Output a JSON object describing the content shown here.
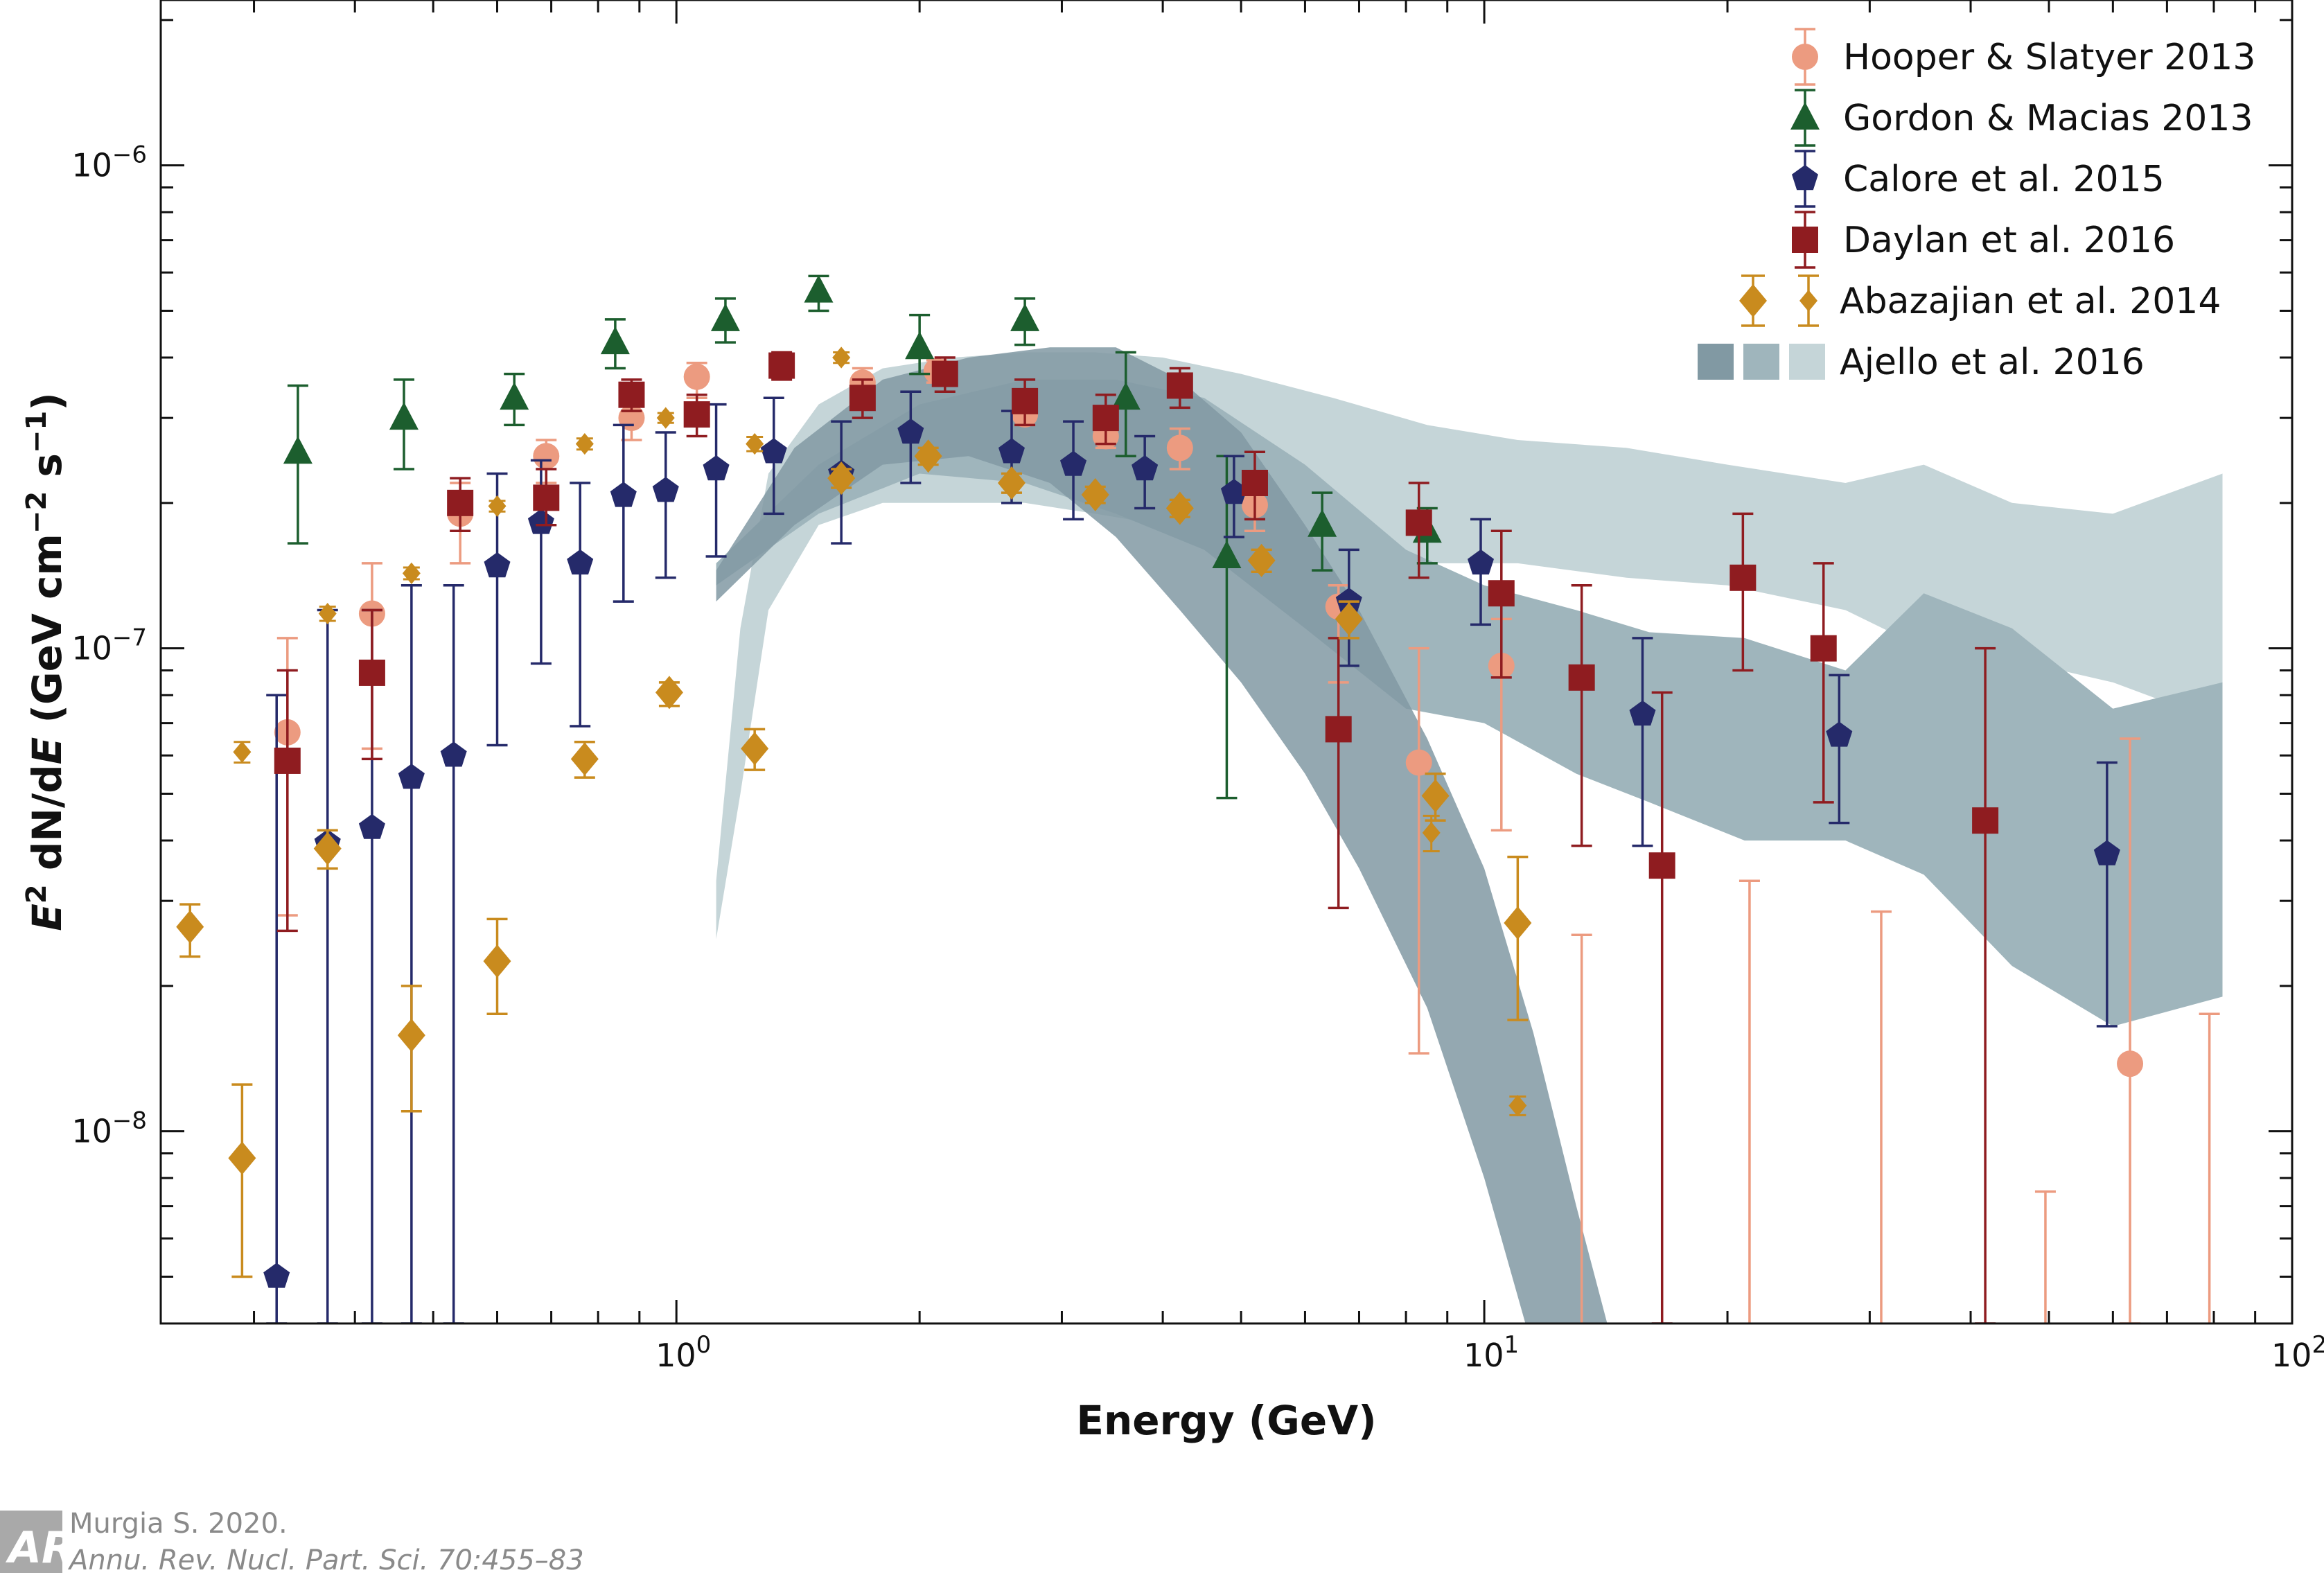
{
  "chart_data": {
    "type": "scatter",
    "title": "",
    "xlabel": "Energy (GeV)",
    "ylabel_parts": [
      "E",
      "2",
      " dN/d",
      "E",
      " (GeV cm",
      "−2",
      " s",
      "−1",
      ")"
    ],
    "xscale": "log",
    "yscale": "log",
    "xlim": [
      0.23,
      100
    ],
    "ylim": [
      4e-09,
      2.2e-06
    ],
    "x_ticks": [
      {
        "value": 1,
        "base": "10",
        "exp": "0"
      },
      {
        "value": 10,
        "base": "10",
        "exp": "1"
      },
      {
        "value": 100,
        "base": "10",
        "exp": "2"
      }
    ],
    "y_ticks": [
      {
        "value": 1e-08,
        "base": "10",
        "exp": "−8"
      },
      {
        "value": 1e-07,
        "base": "10",
        "exp": "−7"
      },
      {
        "value": 1e-06,
        "base": "10",
        "exp": "−6"
      }
    ],
    "legend_position": "top-right",
    "bands": [
      {
        "name": "Ajello et al. 2016",
        "color": "#c5d5d8",
        "x": [
          1.12,
          1.2,
          1.3,
          1.5,
          1.8,
          2.2,
          2.7,
          3.3,
          4.0,
          5.0,
          6.5,
          8.5,
          11,
          15,
          20,
          28,
          35,
          45,
          60,
          82
        ],
        "upper": [
          3.3e-08,
          1.1e-07,
          2.3e-07,
          3.2e-07,
          3.8e-07,
          4e-07,
          4.1e-07,
          4.1e-07,
          4e-07,
          3.7e-07,
          3.3e-07,
          2.9e-07,
          2.7e-07,
          2.6e-07,
          2.4e-07,
          2.2e-07,
          2.4e-07,
          2e-07,
          1.9e-07,
          2.3e-07
        ],
        "lower": [
          2.5e-08,
          5e-08,
          1.2e-07,
          1.8e-07,
          2e-07,
          2e-07,
          2e-07,
          1.9e-07,
          1.8e-07,
          1.6e-07,
          1.5e-07,
          1.5e-07,
          1.5e-07,
          1.4e-07,
          1.35e-07,
          1.2e-07,
          1e-07,
          9.5e-08,
          8.5e-08,
          7e-08
        ]
      },
      {
        "name": "Ajello et al. 2016",
        "color": "#9fb5bc",
        "x": [
          1.12,
          1.5,
          2.0,
          2.7,
          3.5,
          4.5,
          6.0,
          8.0,
          10,
          13,
          16,
          21,
          28,
          35,
          45,
          60,
          82
        ],
        "upper": [
          1.5e-07,
          2.4e-07,
          3.2e-07,
          3.6e-07,
          3.6e-07,
          3.3e-07,
          2.4e-07,
          1.6e-07,
          1.35e-07,
          1.2e-07,
          1.08e-07,
          1.05e-07,
          9e-08,
          1.3e-07,
          1.1e-07,
          7.5e-08,
          8.5e-08
        ],
        "lower": [
          1.35e-07,
          1.9e-07,
          2.3e-07,
          2.2e-07,
          1.9e-07,
          1.6e-07,
          1.1e-07,
          7.5e-08,
          7e-08,
          5.5e-08,
          4.8e-08,
          4e-08,
          4e-08,
          3.4e-08,
          2.2e-08,
          1.65e-08,
          1.9e-08
        ]
      },
      {
        "name": "Ajello et al. 2016",
        "color": "#8199a3",
        "x": [
          1.12,
          1.4,
          1.8,
          2.3,
          2.9,
          3.5,
          4.2,
          5.0,
          6.0,
          7.0,
          8.5,
          10,
          11.5,
          13,
          14.5
        ],
        "upper": [
          1.45e-07,
          2.6e-07,
          3.6e-07,
          4e-07,
          4.2e-07,
          4.2e-07,
          3.6e-07,
          2.8e-07,
          1.8e-07,
          1.2e-07,
          6.5e-08,
          3.5e-08,
          1.6e-08,
          7e-09,
          3.5e-09
        ],
        "lower": [
          1.25e-07,
          1.8e-07,
          2.4e-07,
          2.5e-07,
          2.2e-07,
          1.7e-07,
          1.2e-07,
          8.5e-08,
          5.5e-08,
          3.5e-08,
          1.8e-08,
          8e-09,
          3.5e-09,
          1.5e-09,
          8e-10
        ]
      }
    ],
    "series": [
      {
        "name": "Hooper & Slatyer 2013",
        "color": "#ec9b80",
        "marker": "circle",
        "points": [
          {
            "x": 0.33,
            "y": 6.7e-08,
            "lo": 2.8e-08,
            "hi": 1.05e-07
          },
          {
            "x": 0.42,
            "y": 1.18e-07,
            "lo": 6.2e-08,
            "hi": 1.5e-07
          },
          {
            "x": 0.54,
            "y": 1.9e-07,
            "lo": 1.5e-07,
            "hi": 2.2e-07
          },
          {
            "x": 0.69,
            "y": 2.5e-07,
            "lo": 2.2e-07,
            "hi": 2.7e-07
          },
          {
            "x": 0.88,
            "y": 3e-07,
            "lo": 2.7e-07,
            "hi": 3.3e-07
          },
          {
            "x": 1.06,
            "y": 3.65e-07,
            "lo": 3.3e-07,
            "hi": 3.9e-07
          },
          {
            "x": 1.7,
            "y": 3.55e-07,
            "lo": 3.4e-07,
            "hi": 3.8e-07
          },
          {
            "x": 2.1,
            "y": 3.75e-07,
            "lo": 3.55e-07,
            "hi": 3.95e-07
          },
          {
            "x": 2.7,
            "y": 3.05e-07,
            "lo": 2.9e-07,
            "hi": 3.2e-07
          },
          {
            "x": 3.4,
            "y": 2.75e-07,
            "lo": 2.6e-07,
            "hi": 2.9e-07
          },
          {
            "x": 4.2,
            "y": 2.6e-07,
            "lo": 2.35e-07,
            "hi": 2.85e-07
          },
          {
            "x": 5.2,
            "y": 1.98e-07,
            "lo": 1.75e-07,
            "hi": 2.2e-07
          },
          {
            "x": 6.6,
            "y": 1.22e-07,
            "lo": 8.5e-08,
            "hi": 1.35e-07
          },
          {
            "x": 8.3,
            "y": 5.8e-08,
            "lo": 1.45e-08,
            "hi": 1e-07
          },
          {
            "x": 10.5,
            "y": 9.2e-08,
            "lo": 4.2e-08,
            "hi": 1.15e-07
          },
          {
            "x": 13.2,
            "y": null,
            "lo": null,
            "hi": 2.55e-08
          },
          {
            "x": 21.3,
            "y": null,
            "lo": null,
            "hi": 3.3e-08
          },
          {
            "x": 31,
            "y": null,
            "lo": null,
            "hi": 2.85e-08
          },
          {
            "x": 49.5,
            "y": null,
            "lo": null,
            "hi": 7.5e-09
          },
          {
            "x": 63,
            "y": 1.38e-08,
            "lo": 4e-09,
            "hi": 6.5e-08
          },
          {
            "x": 79,
            "y": null,
            "lo": null,
            "hi": 1.75e-08
          }
        ]
      },
      {
        "name": "Gordon & Macias 2013",
        "color": "#1c5e2e",
        "marker": "triangle",
        "points": [
          {
            "x": 0.34,
            "y": 2.55e-07,
            "lo": 1.65e-07,
            "hi": 3.5e-07
          },
          {
            "x": 0.46,
            "y": 3e-07,
            "lo": 2.35e-07,
            "hi": 3.6e-07
          },
          {
            "x": 0.63,
            "y": 3.3e-07,
            "lo": 2.9e-07,
            "hi": 3.7e-07
          },
          {
            "x": 0.84,
            "y": 4.3e-07,
            "lo": 3.8e-07,
            "hi": 4.8e-07
          },
          {
            "x": 1.15,
            "y": 4.8e-07,
            "lo": 4.3e-07,
            "hi": 5.3e-07
          },
          {
            "x": 1.5,
            "y": 5.5e-07,
            "lo": 5e-07,
            "hi": 5.9e-07
          },
          {
            "x": 2.0,
            "y": 4.2e-07,
            "lo": 3.7e-07,
            "hi": 4.9e-07
          },
          {
            "x": 2.7,
            "y": 4.8e-07,
            "lo": 4.25e-07,
            "hi": 5.3e-07
          },
          {
            "x": 3.6,
            "y": 3.3e-07,
            "lo": 2.5e-07,
            "hi": 4.1e-07
          },
          {
            "x": 4.8,
            "y": 1.55e-07,
            "lo": 4.9e-08,
            "hi": 2.5e-07
          },
          {
            "x": 6.3,
            "y": 1.8e-07,
            "lo": 1.45e-07,
            "hi": 2.1e-07
          },
          {
            "x": 8.5,
            "y": 1.75e-07,
            "lo": 1.5e-07,
            "hi": 1.95e-07
          }
        ]
      },
      {
        "name": "Calore et al. 2015",
        "color": "#252a6a",
        "marker": "pentagon",
        "points": [
          {
            "x": 0.32,
            "y": 5e-09,
            "lo": 4e-09,
            "hi": 8e-08
          },
          {
            "x": 0.37,
            "y": 3.95e-08,
            "lo": 4e-09,
            "hi": 1.2e-07
          },
          {
            "x": 0.42,
            "y": 4.25e-08,
            "lo": 4e-09,
            "hi": 1.2e-07
          },
          {
            "x": 0.47,
            "y": 5.4e-08,
            "lo": 4e-09,
            "hi": 1.35e-07
          },
          {
            "x": 0.53,
            "y": 6e-08,
            "lo": 4e-09,
            "hi": 1.35e-07
          },
          {
            "x": 0.6,
            "y": 1.48e-07,
            "lo": 6.3e-08,
            "hi": 2.3e-07
          },
          {
            "x": 0.68,
            "y": 1.82e-07,
            "lo": 9.3e-08,
            "hi": 2.45e-07
          },
          {
            "x": 0.76,
            "y": 1.5e-07,
            "lo": 6.9e-08,
            "hi": 2.2e-07
          },
          {
            "x": 0.86,
            "y": 2.07e-07,
            "lo": 1.25e-07,
            "hi": 2.9e-07
          },
          {
            "x": 0.97,
            "y": 2.12e-07,
            "lo": 1.4e-07,
            "hi": 2.8e-07
          },
          {
            "x": 1.12,
            "y": 2.35e-07,
            "lo": 1.55e-07,
            "hi": 3.2e-07
          },
          {
            "x": 1.32,
            "y": 2.55e-07,
            "lo": 1.9e-07,
            "hi": 3.3e-07
          },
          {
            "x": 1.6,
            "y": 2.3e-07,
            "lo": 1.65e-07,
            "hi": 2.95e-07
          },
          {
            "x": 1.95,
            "y": 2.8e-07,
            "lo": 2.2e-07,
            "hi": 3.4e-07
          },
          {
            "x": 2.6,
            "y": 2.55e-07,
            "lo": 2e-07,
            "hi": 3.1e-07
          },
          {
            "x": 3.1,
            "y": 2.4e-07,
            "lo": 1.85e-07,
            "hi": 2.95e-07
          },
          {
            "x": 3.8,
            "y": 2.35e-07,
            "lo": 1.95e-07,
            "hi": 2.75e-07
          },
          {
            "x": 4.9,
            "y": 2.1e-07,
            "lo": 1.7e-07,
            "hi": 2.5e-07
          },
          {
            "x": 6.8,
            "y": 1.25e-07,
            "lo": 9.2e-08,
            "hi": 1.6e-07
          },
          {
            "x": 9.9,
            "y": 1.5e-07,
            "lo": 1.12e-07,
            "hi": 1.85e-07
          },
          {
            "x": 15.7,
            "y": 7.3e-08,
            "lo": 3.9e-08,
            "hi": 1.05e-07
          },
          {
            "x": 27.5,
            "y": 6.6e-08,
            "lo": 4.35e-08,
            "hi": 8.8e-08
          },
          {
            "x": 59,
            "y": 3.75e-08,
            "lo": 1.65e-08,
            "hi": 5.8e-08
          }
        ]
      },
      {
        "name": "Daylan et al. 2016",
        "color": "#8f1c20",
        "marker": "square",
        "points": [
          {
            "x": 0.33,
            "y": 5.85e-08,
            "lo": 2.6e-08,
            "hi": 9e-08
          },
          {
            "x": 0.42,
            "y": 8.9e-08,
            "lo": 5.9e-08,
            "hi": 1.2e-07
          },
          {
            "x": 0.54,
            "y": 2e-07,
            "lo": 1.75e-07,
            "hi": 2.25e-07
          },
          {
            "x": 0.69,
            "y": 2.05e-07,
            "lo": 1.8e-07,
            "hi": 2.35e-07
          },
          {
            "x": 0.88,
            "y": 3.35e-07,
            "lo": 3.1e-07,
            "hi": 3.6e-07
          },
          {
            "x": 1.06,
            "y": 3.05e-07,
            "lo": 2.75e-07,
            "hi": 3.35e-07
          },
          {
            "x": 1.35,
            "y": 3.85e-07,
            "lo": 3.6e-07,
            "hi": 4.1e-07
          },
          {
            "x": 1.7,
            "y": 3.3e-07,
            "lo": 3e-07,
            "hi": 3.6e-07
          },
          {
            "x": 2.15,
            "y": 3.7e-07,
            "lo": 3.4e-07,
            "hi": 4e-07
          },
          {
            "x": 2.7,
            "y": 3.25e-07,
            "lo": 2.9e-07,
            "hi": 3.6e-07
          },
          {
            "x": 3.4,
            "y": 3e-07,
            "lo": 2.65e-07,
            "hi": 3.35e-07
          },
          {
            "x": 4.2,
            "y": 3.5e-07,
            "lo": 3.15e-07,
            "hi": 3.8e-07
          },
          {
            "x": 5.2,
            "y": 2.2e-07,
            "lo": 1.85e-07,
            "hi": 2.55e-07
          },
          {
            "x": 6.6,
            "y": 6.8e-08,
            "lo": 2.9e-08,
            "hi": 1.05e-07
          },
          {
            "x": 8.3,
            "y": 1.82e-07,
            "lo": 1.4e-07,
            "hi": 2.2e-07
          },
          {
            "x": 10.5,
            "y": 1.3e-07,
            "lo": 8.7e-08,
            "hi": 1.75e-07
          },
          {
            "x": 13.2,
            "y": 8.7e-08,
            "lo": 3.9e-08,
            "hi": 1.35e-07
          },
          {
            "x": 16.6,
            "y": 3.55e-08,
            "lo": 4e-09,
            "hi": 8.1e-08
          },
          {
            "x": 20.9,
            "y": 1.4e-07,
            "lo": 9e-08,
            "hi": 1.9e-07
          },
          {
            "x": 26.3,
            "y": 1e-07,
            "lo": 4.8e-08,
            "hi": 1.5e-07
          },
          {
            "x": 41.7,
            "y": 4.4e-08,
            "lo": 4e-09,
            "hi": 1e-07
          }
        ]
      },
      {
        "name": "Abazajian et al. 2014",
        "color": "#c98b1e",
        "marker": "diamond",
        "points": [
          {
            "x": 0.25,
            "y": 2.65e-08,
            "lo": 2.3e-08,
            "hi": 2.95e-08,
            "size": "large"
          },
          {
            "x": 0.29,
            "y": 8.8e-09,
            "lo": 5e-09,
            "hi": 1.25e-08,
            "size": "large"
          },
          {
            "x": 0.37,
            "y": 3.85e-08,
            "lo": 3.5e-08,
            "hi": 4.2e-08,
            "size": "large"
          },
          {
            "x": 0.47,
            "y": 1.58e-08,
            "lo": 1.1e-08,
            "hi": 2e-08,
            "size": "large"
          },
          {
            "x": 0.6,
            "y": 2.25e-08,
            "lo": 1.75e-08,
            "hi": 2.75e-08,
            "size": "large"
          },
          {
            "x": 0.77,
            "y": 5.9e-08,
            "lo": 5.4e-08,
            "hi": 6.4e-08,
            "size": "large"
          },
          {
            "x": 0.98,
            "y": 8.1e-08,
            "lo": 7.6e-08,
            "hi": 8.5e-08,
            "size": "large"
          },
          {
            "x": 1.25,
            "y": 6.2e-08,
            "lo": 5.6e-08,
            "hi": 6.8e-08,
            "size": "large"
          },
          {
            "x": 1.6,
            "y": 2.25e-07,
            "lo": 2.15e-07,
            "hi": 2.35e-07,
            "size": "large"
          },
          {
            "x": 2.05,
            "y": 2.5e-07,
            "lo": 2.4e-07,
            "hi": 2.6e-07,
            "size": "large"
          },
          {
            "x": 2.6,
            "y": 2.2e-07,
            "lo": 2.1e-07,
            "hi": 2.3e-07,
            "size": "large"
          },
          {
            "x": 3.3,
            "y": 2.08e-07,
            "lo": 2e-07,
            "hi": 2.16e-07,
            "size": "large"
          },
          {
            "x": 4.2,
            "y": 1.95e-07,
            "lo": 1.87e-07,
            "hi": 2.03e-07,
            "size": "large"
          },
          {
            "x": 5.3,
            "y": 1.52e-07,
            "lo": 1.44e-07,
            "hi": 1.6e-07,
            "size": "large"
          },
          {
            "x": 6.8,
            "y": 1.15e-07,
            "lo": 1.05e-07,
            "hi": 1.25e-07,
            "size": "large"
          },
          {
            "x": 8.7,
            "y": 4.95e-08,
            "lo": 4.4e-08,
            "hi": 5.5e-08,
            "size": "large"
          },
          {
            "x": 11.0,
            "y": 2.7e-08,
            "lo": 1.7e-08,
            "hi": 3.7e-08,
            "size": "large"
          },
          {
            "x": 0.29,
            "y": 6.1e-08,
            "lo": 5.8e-08,
            "hi": 6.4e-08,
            "size": "small"
          },
          {
            "x": 0.37,
            "y": 1.18e-07,
            "lo": 1.14e-07,
            "hi": 1.22e-07,
            "size": "small"
          },
          {
            "x": 0.47,
            "y": 1.43e-07,
            "lo": 1.39e-07,
            "hi": 1.47e-07,
            "size": "small"
          },
          {
            "x": 0.6,
            "y": 1.97e-07,
            "lo": 1.92e-07,
            "hi": 2.02e-07,
            "size": "small"
          },
          {
            "x": 0.77,
            "y": 2.65e-07,
            "lo": 2.58e-07,
            "hi": 2.72e-07,
            "size": "small"
          },
          {
            "x": 0.97,
            "y": 3e-07,
            "lo": 2.93e-07,
            "hi": 3.07e-07,
            "size": "small"
          },
          {
            "x": 1.25,
            "y": 2.65e-07,
            "lo": 2.56e-07,
            "hi": 2.74e-07,
            "size": "small"
          },
          {
            "x": 1.6,
            "y": 4e-07,
            "lo": 3.9e-07,
            "hi": 4.1e-07,
            "size": "small"
          },
          {
            "x": 8.6,
            "y": 4.15e-08,
            "lo": 3.8e-08,
            "hi": 4.5e-08,
            "size": "small"
          },
          {
            "x": 11.0,
            "y": 1.13e-08,
            "lo": 1.08e-08,
            "hi": 1.18e-08,
            "size": "small"
          }
        ]
      }
    ],
    "legend": [
      {
        "label": "Hooper & Slatyer 2013",
        "marker": "circle",
        "color": "#ec9b80"
      },
      {
        "label": "Gordon & Macias 2013",
        "marker": "triangle",
        "color": "#1c5e2e"
      },
      {
        "label": "Calore et al. 2015",
        "marker": "pentagon",
        "color": "#252a6a"
      },
      {
        "label": "Daylan et al. 2016",
        "marker": "square",
        "color": "#8f1c20"
      },
      {
        "label": "Abazajian et al. 2014",
        "marker": "diamond",
        "color": "#c98b1e"
      },
      {
        "label": "Ajello et al. 2016",
        "marker": "band",
        "colors": [
          "#8199a3",
          "#9fb5bc",
          "#c5d5d8"
        ]
      }
    ]
  },
  "credit": {
    "line1": "Murgia S. 2020.",
    "line2": "Annu. Rev. Nucl. Part. Sci. 70:455–83",
    "logo_text": "AR"
  }
}
